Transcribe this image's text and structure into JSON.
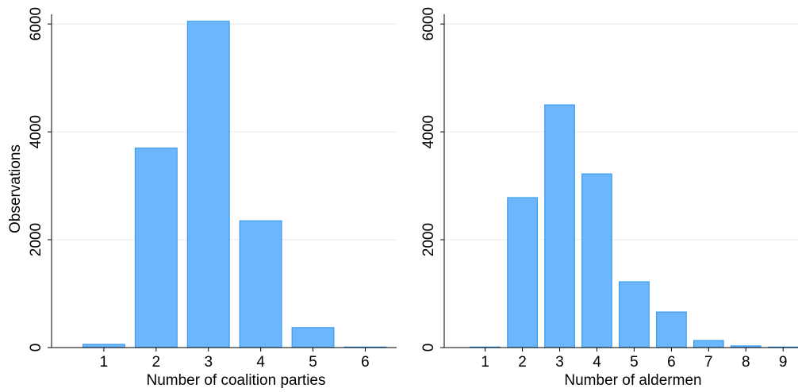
{
  "chart_data": [
    {
      "type": "bar",
      "x_label": "Number of coalition parties",
      "y_label": "Observations",
      "x": [
        1,
        2,
        3,
        4,
        5,
        6
      ],
      "values": [
        60,
        3700,
        6050,
        2350,
        370,
        10
      ],
      "color": "#6db6fc",
      "edge_color": "#3a9bf0",
      "bar_width": 0.8,
      "xlim": [
        0,
        6.6
      ],
      "xticks": [
        1,
        2,
        3,
        4,
        5,
        6
      ],
      "ylim": [
        0,
        6180
      ],
      "yticks": [
        0,
        2000,
        4000,
        6000
      ],
      "grid": true
    },
    {
      "type": "bar",
      "x_label": "Number of aldermen",
      "x": [
        1,
        2,
        3,
        4,
        5,
        6,
        7,
        8,
        9
      ],
      "values": [
        10,
        2780,
        4500,
        3220,
        1220,
        660,
        130,
        30,
        10
      ],
      "color": "#6db6fc",
      "edge_color": "#3a9bf0",
      "bar_width": 0.8,
      "xlim": [
        -0.1,
        9.4
      ],
      "xticks": [
        1,
        2,
        3,
        4,
        5,
        6,
        7,
        8,
        9
      ],
      "ylim": [
        0,
        6180
      ],
      "yticks": [
        0,
        2000,
        4000,
        6000
      ],
      "grid": true
    }
  ]
}
